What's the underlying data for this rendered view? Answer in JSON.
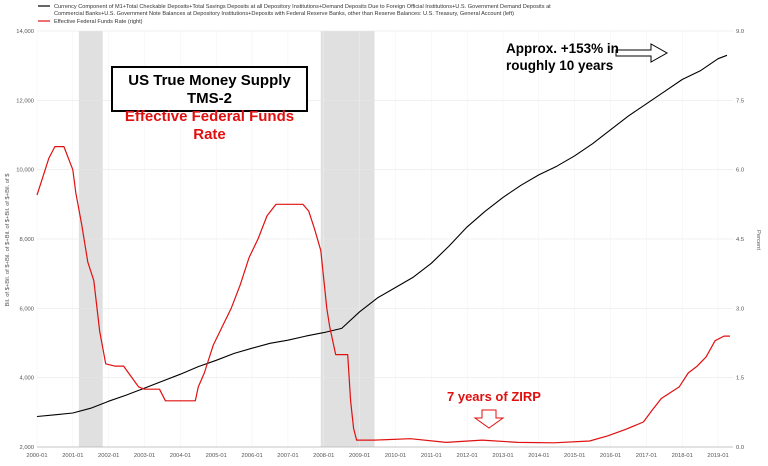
{
  "legend": {
    "series1_text_line1": "Currency Component of M1+Total Checkable Deposits+Total Savings Deposits at all Depository Institutions+Demand Deposits Due to Foreign Official Institutions+U.S. Government Demand Deposits at",
    "series1_text_line2": "Commercial Banks+U.S. Government Note Balances at Depository Institutions+Deposits with Federal Reserve Banks, other than Reserve Balances: U.S. Treasury, General Account (left)",
    "series2_text": "Effective Federal Funds Rate (right)"
  },
  "title_box": {
    "line1": "US True Money Supply TMS-2",
    "line2": "Effective Federal Funds Rate"
  },
  "annotations": {
    "tms_line1": "Approx. +153% in",
    "tms_line2": "roughly 10 years",
    "zirp": "7 years of ZIRP"
  },
  "colors": {
    "tms": "#000000",
    "ffr": "#e01010",
    "recession": "#e0e0e0"
  },
  "chart_data": {
    "type": "line",
    "x_range": [
      "2000-01",
      "2019-06"
    ],
    "left_axis": {
      "label": "Bil. of $+Bil. of $+Bil. of $+Bil. of $+Bil. of $+Bil. of $",
      "ylim": [
        2000,
        14000
      ],
      "ticks": [
        "2,000",
        "4,000",
        "6,000",
        "8,000",
        "10,000",
        "12,000",
        "14,000"
      ],
      "tick_values": [
        2000,
        4000,
        6000,
        8000,
        10000,
        12000,
        14000
      ]
    },
    "right_axis": {
      "label": "Percent",
      "ylim": [
        0,
        9
      ],
      "ticks": [
        "0.0",
        "1.5",
        "3.0",
        "4.5",
        "6.0",
        "7.5",
        "9.0"
      ],
      "tick_values": [
        0,
        1.5,
        3,
        4.5,
        6,
        7.5,
        9
      ]
    },
    "x_ticks": [
      "2000-01",
      "2001-01",
      "2002-01",
      "2003-01",
      "2004-01",
      "2005-01",
      "2006-01",
      "2007-01",
      "2008-01",
      "2009-01",
      "2010-01",
      "2011-01",
      "2012-01",
      "2013-01",
      "2014-01",
      "2015-01",
      "2016-01",
      "2017-01",
      "2018-01",
      "2019-01"
    ],
    "recessions": [
      [
        "2001-03",
        "2001-11"
      ],
      [
        "2007-12",
        "2009-06"
      ]
    ],
    "grid": true,
    "series": [
      {
        "name": "Currency Component of M1+Total Checkable Deposits+Total Savings Deposits at all Depository Institutions+Demand Deposits Due to Foreign Official Institutions+U.S. Government Demand Deposits at Commercial Banks+U.S. Government Note Balances at Depository Institutions+Deposits with Federal Reserve Banks, other than Reserve Balances: U.S. Treasury, General Account (left)",
        "axis": "left",
        "x": [
          "2000-01",
          "2000-07",
          "2001-01",
          "2001-07",
          "2002-01",
          "2002-07",
          "2003-01",
          "2003-07",
          "2004-01",
          "2004-07",
          "2005-01",
          "2005-07",
          "2006-01",
          "2006-07",
          "2007-01",
          "2007-07",
          "2008-01",
          "2008-07",
          "2009-01",
          "2009-07",
          "2010-01",
          "2010-07",
          "2011-01",
          "2011-07",
          "2012-01",
          "2012-07",
          "2013-01",
          "2013-07",
          "2014-01",
          "2014-07",
          "2015-01",
          "2015-07",
          "2016-01",
          "2016-07",
          "2017-01",
          "2017-07",
          "2018-01",
          "2018-07",
          "2019-01",
          "2019-04"
        ],
        "values": [
          2880,
          2930,
          2980,
          3120,
          3320,
          3500,
          3700,
          3900,
          4100,
          4320,
          4500,
          4700,
          4850,
          4990,
          5080,
          5200,
          5300,
          5420,
          5900,
          6300,
          6600,
          6900,
          7300,
          7800,
          8350,
          8800,
          9200,
          9550,
          9850,
          10100,
          10400,
          10750,
          11150,
          11550,
          11900,
          12250,
          12600,
          12850,
          13200,
          13300
        ]
      },
      {
        "name": "Effective Federal Funds Rate (right)",
        "axis": "right",
        "x": [
          "2000-01",
          "2000-03",
          "2000-05",
          "2000-07",
          "2000-10",
          "2001-01",
          "2001-02",
          "2001-04",
          "2001-06",
          "2001-08",
          "2001-10",
          "2001-12",
          "2002-03",
          "2002-06",
          "2002-11",
          "2003-01",
          "2003-06",
          "2003-08",
          "2004-01",
          "2004-06",
          "2004-07",
          "2004-09",
          "2004-12",
          "2005-03",
          "2005-06",
          "2005-09",
          "2005-12",
          "2006-03",
          "2006-06",
          "2006-09",
          "2007-01",
          "2007-06",
          "2007-08",
          "2007-10",
          "2007-12",
          "2008-02",
          "2008-03",
          "2008-05",
          "2008-09",
          "2008-10",
          "2008-11",
          "2008-12",
          "2009-06",
          "2010-06",
          "2011-06",
          "2012-06",
          "2013-06",
          "2014-06",
          "2015-06",
          "2015-12",
          "2016-06",
          "2016-12",
          "2017-03",
          "2017-06",
          "2017-12",
          "2018-03",
          "2018-06",
          "2018-09",
          "2018-12",
          "2019-03",
          "2019-05"
        ],
        "values": [
          5.45,
          5.85,
          6.25,
          6.5,
          6.5,
          6.0,
          5.5,
          4.8,
          4.0,
          3.6,
          2.5,
          1.8,
          1.75,
          1.75,
          1.3,
          1.25,
          1.25,
          1.0,
          1.0,
          1.0,
          1.3,
          1.6,
          2.2,
          2.6,
          3.0,
          3.5,
          4.1,
          4.5,
          5.0,
          5.25,
          5.25,
          5.25,
          5.1,
          4.7,
          4.25,
          3.0,
          2.6,
          2.0,
          2.0,
          1.0,
          0.4,
          0.15,
          0.15,
          0.18,
          0.1,
          0.15,
          0.1,
          0.09,
          0.13,
          0.24,
          0.38,
          0.54,
          0.8,
          1.05,
          1.3,
          1.6,
          1.75,
          1.95,
          2.3,
          2.4,
          2.4
        ]
      }
    ]
  }
}
